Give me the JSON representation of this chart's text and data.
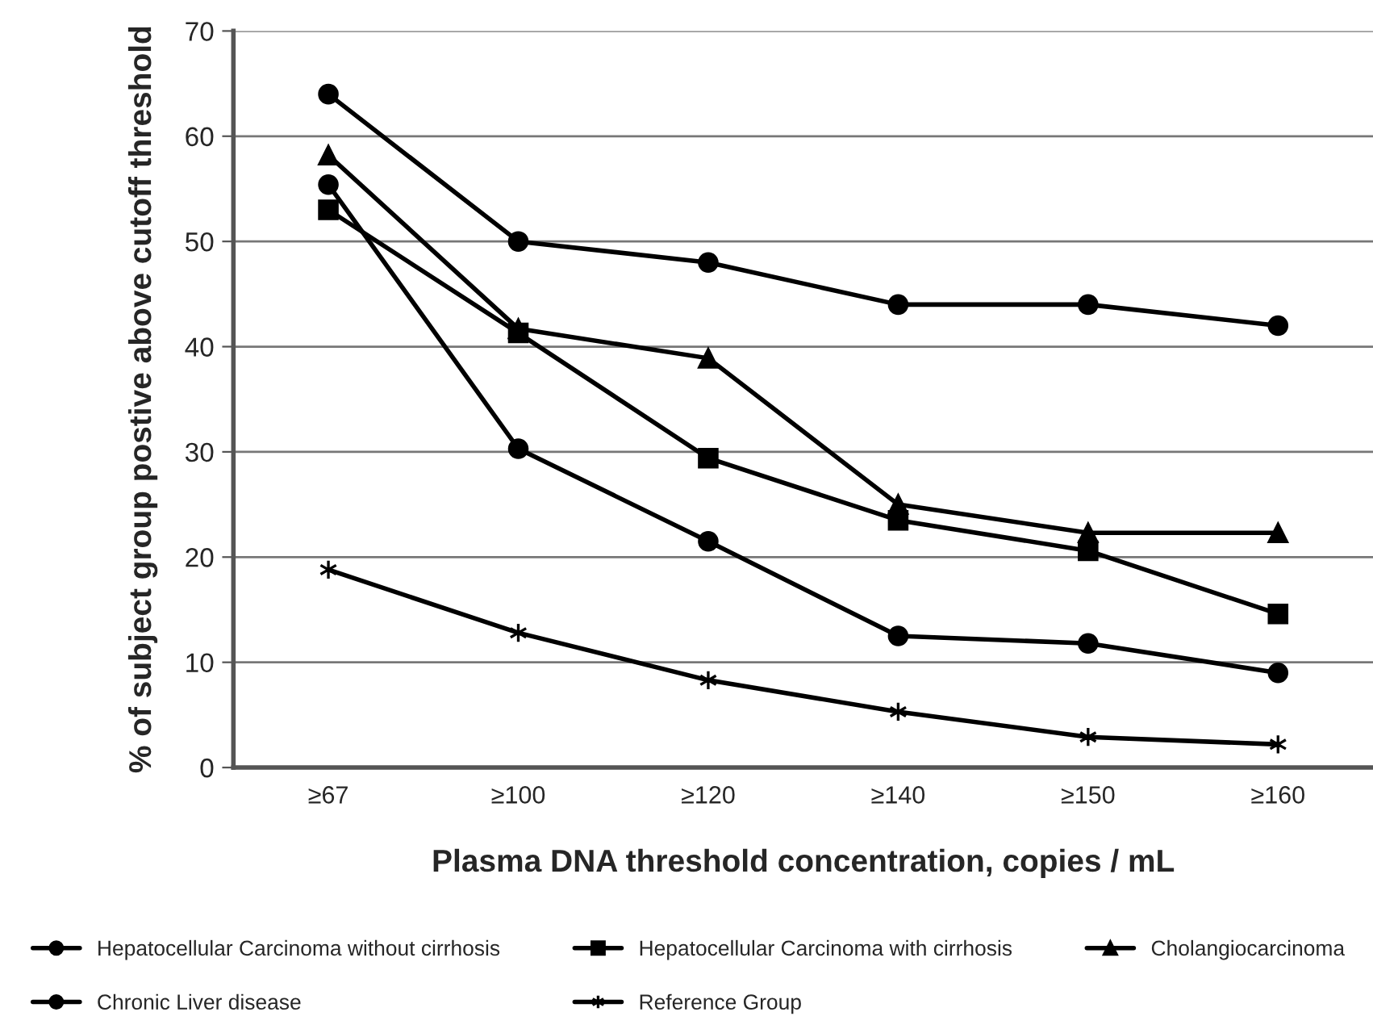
{
  "chart_data": {
    "type": "line",
    "xlabel": "Plasma DNA threshold concentration, copies / mL",
    "ylabel": "% of subject group postive above cutoff threshold",
    "categories": [
      "≥67",
      "≥100",
      "≥120",
      "≥140",
      "≥150",
      "≥160"
    ],
    "ylim": [
      0,
      70
    ],
    "yticks": [
      0,
      10,
      20,
      30,
      40,
      50,
      60,
      70
    ],
    "grid": "y",
    "legend": "bottom",
    "series": [
      {
        "name": "Hepatocellular Carcinoma without cirrhosis",
        "color": "#000000",
        "marker": "circle",
        "values": [
          64,
          50,
          48,
          44,
          44,
          42
        ]
      },
      {
        "name": "Hepatocellular Carcinoma with cirrhosis",
        "color": "#000000",
        "marker": "square",
        "values": [
          53,
          41.3,
          29.4,
          23.5,
          20.6,
          14.6
        ]
      },
      {
        "name": "Cholangiocarcinoma",
        "color": "#000000",
        "marker": "triangle",
        "values": [
          58.2,
          41.7,
          38.9,
          25,
          22.3,
          22.3
        ]
      },
      {
        "name": "Chronic Liver disease",
        "color": "#000000",
        "marker": "circle",
        "values": [
          55.4,
          30.3,
          21.5,
          12.5,
          11.8,
          9
        ]
      },
      {
        "name": "Reference Group",
        "color": "#000000",
        "marker": "cross",
        "values": [
          18.8,
          12.8,
          8.3,
          5.3,
          2.9,
          2.2
        ]
      }
    ]
  }
}
